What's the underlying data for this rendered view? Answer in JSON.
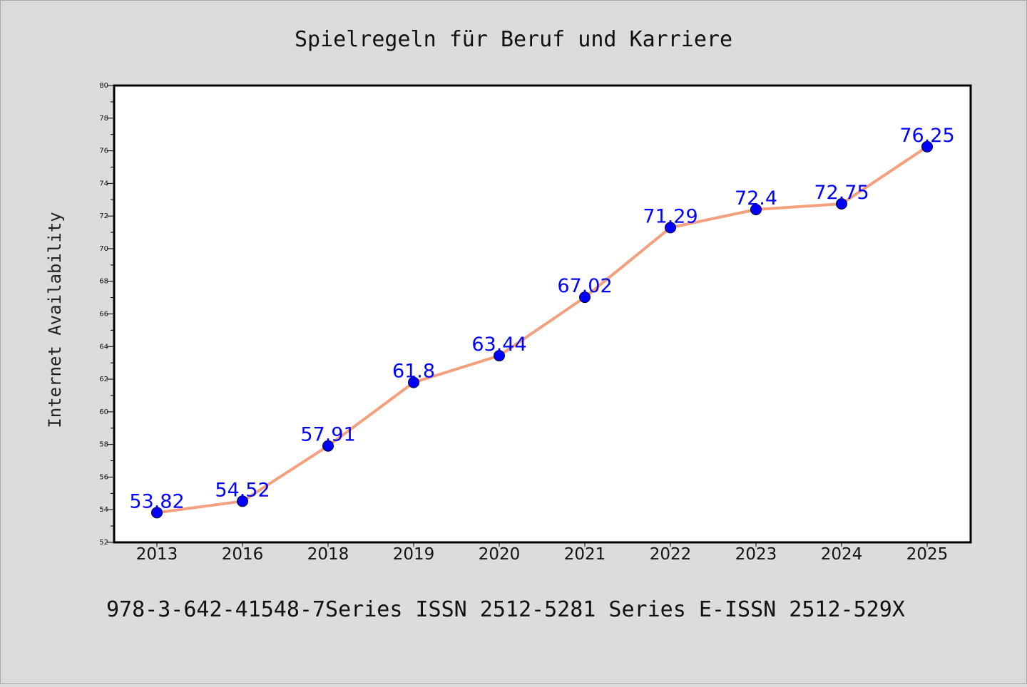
{
  "title": "Spielregeln für Beruf und Karriere",
  "caption": "978-3-642-41548-7Series ISSN 2512-5281 Series E-ISSN 2512-529X",
  "colors": {
    "background": "#dcdcdc",
    "plot_background": "#ffffff",
    "line": "#f4a07e",
    "marker": "#0000ff",
    "label": "#0000ff"
  },
  "chart_data": {
    "type": "line",
    "title": "Spielregeln für Beruf und Karriere",
    "xlabel": "",
    "ylabel": "Internet Availability",
    "categories": [
      "2013",
      "2016",
      "2018",
      "2019",
      "2020",
      "2021",
      "2022",
      "2023",
      "2024",
      "2025"
    ],
    "series": [
      {
        "values": [
          53.82,
          54.52,
          57.91,
          61.8,
          63.44,
          67.02,
          71.29,
          72.4,
          72.75,
          76.25
        ],
        "labels": [
          "53.82",
          "54.52",
          "57.91",
          "61.8",
          "63.44",
          "67.02",
          "71.29",
          "72.4",
          "72.75",
          "76.25"
        ]
      }
    ],
    "ylim": [
      52,
      80
    ],
    "yticks": [
      "52",
      "54",
      "56",
      "58",
      "60",
      "62",
      "64",
      "66",
      "68",
      "70",
      "72",
      "74",
      "76",
      "78",
      "80"
    ],
    "grid": false,
    "legend": "none",
    "markers": "filled circles",
    "data_labels": true
  }
}
